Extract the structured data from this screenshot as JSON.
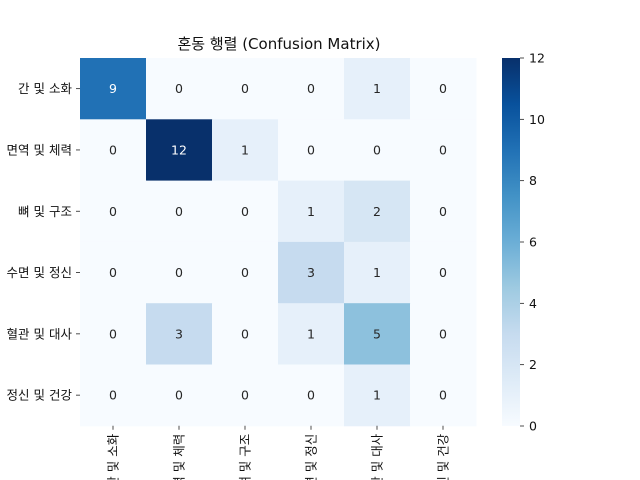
{
  "chart_data": {
    "type": "heatmap",
    "title": "혼동 행렬 (Confusion Matrix)",
    "row_labels": [
      "간 및 소화",
      "면역 및 체력",
      "뼈 및 구조",
      "수면 및 정신",
      "혈관 및 대사",
      "정신 및 건강"
    ],
    "col_labels": [
      "간 및 소화",
      "면역 및 체력",
      "뼈 및 구조",
      "수면 및 정신",
      "혈관 및 대사",
      "정신 및 건강"
    ],
    "values": [
      [
        9,
        0,
        0,
        0,
        1,
        0
      ],
      [
        0,
        12,
        1,
        0,
        0,
        0
      ],
      [
        0,
        0,
        0,
        1,
        2,
        0
      ],
      [
        0,
        0,
        0,
        3,
        1,
        0
      ],
      [
        0,
        3,
        0,
        1,
        5,
        0
      ],
      [
        0,
        0,
        0,
        0,
        1,
        0
      ]
    ],
    "colorbar": {
      "min": 0,
      "max": 12,
      "ticks": [
        0,
        2,
        4,
        6,
        8,
        10,
        12
      ]
    },
    "colormap": "Blues"
  }
}
